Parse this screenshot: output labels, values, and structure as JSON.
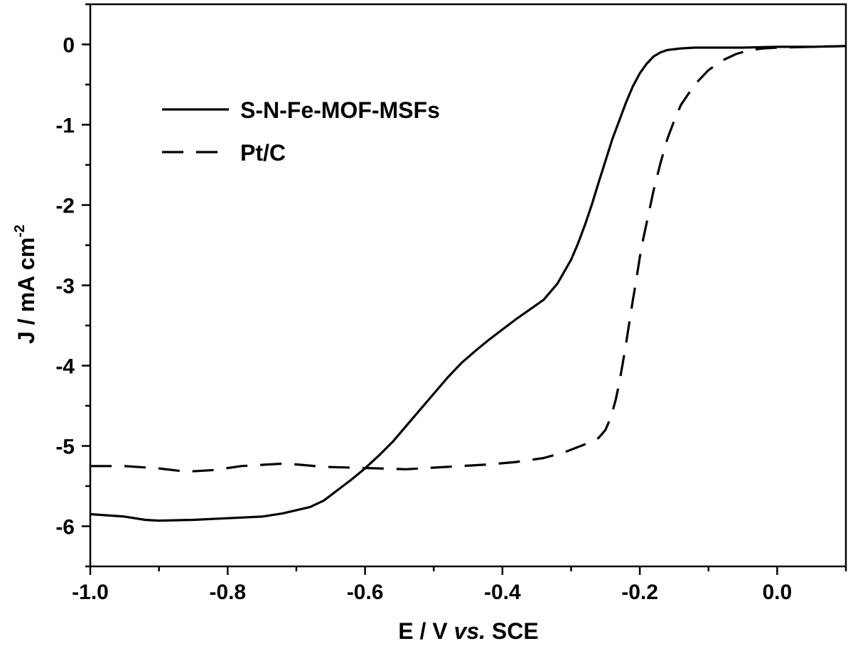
{
  "chart_data": {
    "type": "line",
    "title": "",
    "xlabel": {
      "prefix": "E / V ",
      "italic": "vs.",
      "suffix": " SCE"
    },
    "ylabel": {
      "main": "J / mA cm",
      "sup": "-2"
    },
    "xlim": [
      -1.0,
      0.1
    ],
    "ylim": [
      -6.5,
      0.5
    ],
    "xticks": [
      -1.0,
      -0.8,
      -0.6,
      -0.4,
      -0.2,
      0.0
    ],
    "xtick_labels": [
      "-1.0",
      "-0.8",
      "-0.6",
      "-0.4",
      "-0.2",
      "0.0"
    ],
    "yticks": [
      0,
      -1,
      -2,
      -3,
      -4,
      -5,
      -6
    ],
    "ytick_labels": [
      "0",
      "-1",
      "-2",
      "-3",
      "-4",
      "-5",
      "-6"
    ],
    "legend_position": "top-left",
    "series": [
      {
        "name": "S-N-Fe-MOF-MSFs",
        "style": "solid",
        "color": "#000000",
        "x": [
          -1.0,
          -0.95,
          -0.92,
          -0.9,
          -0.85,
          -0.8,
          -0.75,
          -0.72,
          -0.7,
          -0.68,
          -0.66,
          -0.64,
          -0.62,
          -0.6,
          -0.58,
          -0.56,
          -0.54,
          -0.52,
          -0.5,
          -0.48,
          -0.46,
          -0.44,
          -0.42,
          -0.4,
          -0.38,
          -0.36,
          -0.34,
          -0.32,
          -0.3,
          -0.29,
          -0.28,
          -0.27,
          -0.26,
          -0.25,
          -0.24,
          -0.23,
          -0.22,
          -0.21,
          -0.2,
          -0.19,
          -0.18,
          -0.17,
          -0.16,
          -0.14,
          -0.12,
          -0.1,
          -0.05,
          0.0,
          0.05,
          0.1
        ],
        "y": [
          -5.85,
          -5.88,
          -5.92,
          -5.93,
          -5.92,
          -5.9,
          -5.88,
          -5.84,
          -5.8,
          -5.76,
          -5.68,
          -5.55,
          -5.42,
          -5.28,
          -5.12,
          -4.95,
          -4.75,
          -4.55,
          -4.35,
          -4.15,
          -3.97,
          -3.82,
          -3.68,
          -3.55,
          -3.42,
          -3.3,
          -3.18,
          -2.98,
          -2.68,
          -2.48,
          -2.25,
          -2.0,
          -1.72,
          -1.45,
          -1.18,
          -0.95,
          -0.72,
          -0.52,
          -0.36,
          -0.24,
          -0.15,
          -0.1,
          -0.07,
          -0.05,
          -0.04,
          -0.04,
          -0.04,
          -0.03,
          -0.03,
          -0.02
        ]
      },
      {
        "name": "Pt/C",
        "style": "dashed",
        "color": "#000000",
        "x": [
          -1.0,
          -0.95,
          -0.9,
          -0.86,
          -0.82,
          -0.78,
          -0.74,
          -0.72,
          -0.7,
          -0.66,
          -0.62,
          -0.58,
          -0.54,
          -0.5,
          -0.46,
          -0.42,
          -0.38,
          -0.34,
          -0.31,
          -0.28,
          -0.26,
          -0.25,
          -0.245,
          -0.24,
          -0.235,
          -0.23,
          -0.225,
          -0.22,
          -0.215,
          -0.21,
          -0.205,
          -0.2,
          -0.195,
          -0.19,
          -0.185,
          -0.18,
          -0.17,
          -0.16,
          -0.15,
          -0.14,
          -0.12,
          -0.1,
          -0.08,
          -0.06,
          -0.04,
          -0.02,
          0.0,
          0.05,
          0.1
        ],
        "y": [
          -5.25,
          -5.25,
          -5.28,
          -5.32,
          -5.3,
          -5.25,
          -5.23,
          -5.22,
          -5.23,
          -5.26,
          -5.27,
          -5.28,
          -5.29,
          -5.27,
          -5.25,
          -5.23,
          -5.2,
          -5.15,
          -5.08,
          -4.98,
          -4.9,
          -4.8,
          -4.7,
          -4.58,
          -4.42,
          -4.22,
          -3.98,
          -3.72,
          -3.45,
          -3.18,
          -2.92,
          -2.65,
          -2.42,
          -2.22,
          -2.02,
          -1.82,
          -1.48,
          -1.18,
          -0.95,
          -0.75,
          -0.5,
          -0.32,
          -0.2,
          -0.12,
          -0.07,
          -0.05,
          -0.04,
          -0.03,
          -0.02
        ]
      }
    ]
  }
}
